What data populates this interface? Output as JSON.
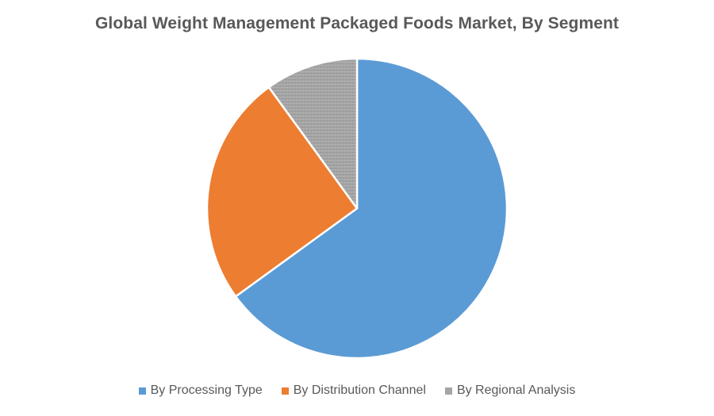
{
  "chart_data": {
    "type": "pie",
    "title": "Global Weight Management Packaged Foods Market, By Segment",
    "categories": [
      "By Processing Type",
      "By Distribution Channel",
      "By Regional Analysis"
    ],
    "values": [
      65,
      25,
      10
    ],
    "colors": [
      "#5b9bd5",
      "#ed7d31",
      "#a5a5a5"
    ],
    "legend_position": "bottom"
  }
}
